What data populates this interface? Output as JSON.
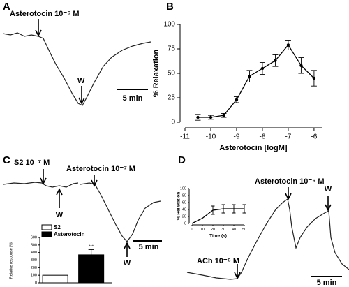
{
  "chart_data": [
    {
      "type": "trace",
      "panel": "A",
      "annotations": [
        "Asterotocin 10⁻⁶ M",
        "W"
      ],
      "scale_bar": "5 min"
    },
    {
      "type": "line",
      "panel": "B",
      "xlabel": "Asterotocin [logM]",
      "ylabel": "% Relaxation",
      "x": [
        -10.5,
        -10,
        -9.5,
        -9,
        -8.5,
        -8,
        -7.5,
        -7,
        -6.5,
        -6
      ],
      "values": [
        5,
        5,
        7,
        23,
        47,
        55,
        63,
        79,
        58,
        45
      ],
      "errors": [
        3,
        2,
        2,
        3,
        6,
        6,
        6,
        5,
        8,
        8
      ],
      "color": "#000",
      "xlim": [
        -11,
        -5.7
      ],
      "xticks": [
        -11,
        -10,
        -9,
        -8,
        -7,
        -6
      ],
      "ylim": [
        0,
        100
      ],
      "yticks": [
        0,
        25,
        50,
        75,
        100
      ]
    },
    {
      "type": "trace",
      "panel": "C",
      "annotations": [
        "S2 10⁻⁷ M",
        "Asterotocin 10⁻⁷ M",
        "W",
        "W"
      ],
      "scale_bar": "5 min"
    },
    {
      "type": "bar",
      "ylabel": "Relative response [%]",
      "series": [
        {
          "name": "S2",
          "color": "#ffffff",
          "values": [
            100
          ]
        },
        {
          "name": "Asterotocin",
          "color": "#000000",
          "values": [
            370
          ],
          "errors": [
            70
          ]
        }
      ],
      "annotation": "***",
      "ylim": [
        0,
        600
      ],
      "yticks": [
        0,
        100,
        200,
        300,
        400,
        500,
        600
      ]
    },
    {
      "type": "trace",
      "panel": "D",
      "annotations": [
        "Asterotocin 10⁻⁶ M",
        "W",
        "ACh 10⁻⁶ M"
      ],
      "scale_bar": "5 min"
    },
    {
      "type": "line",
      "xlabel": "Time (s)",
      "ylabel": "% Relaxation",
      "x": [
        0,
        10,
        20,
        30,
        40,
        50
      ],
      "values": [
        0,
        15,
        38,
        42,
        42,
        42
      ],
      "errors": [
        null,
        null,
        12,
        12,
        12,
        12
      ],
      "color": "#000",
      "xlim": [
        0,
        50
      ],
      "xticks": [
        0,
        10,
        20,
        30,
        40,
        50
      ],
      "ylim": [
        0,
        100
      ],
      "yticks": [
        0,
        20,
        40,
        60,
        80,
        100
      ]
    }
  ]
}
